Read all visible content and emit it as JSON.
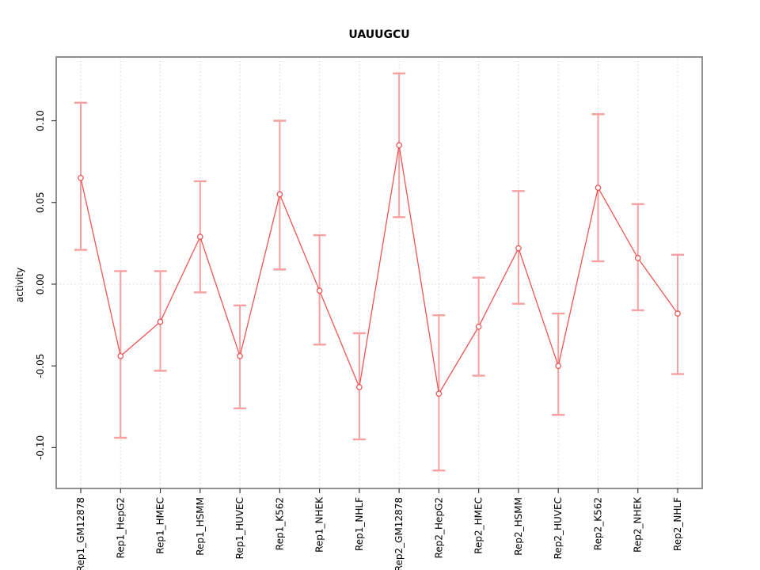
{
  "title": "UAUUGCU",
  "chart_data": {
    "type": "line",
    "title": "UAUUGCU",
    "xlabel": "",
    "ylabel": "activity",
    "legend": "none",
    "grid": "vertical dotted gridlines at each category; dotted horizontal line at 0",
    "categories": [
      "Rep1_GM12878",
      "Rep1_HepG2",
      "Rep1_HMEC",
      "Rep1_HSMM",
      "Rep1_HUVEC",
      "Rep1_K562",
      "Rep1_NHEK",
      "Rep1_NHLF",
      "Rep2_GM12878",
      "Rep2_HepG2",
      "Rep2_HMEC",
      "Rep2_HSMM",
      "Rep2_HUVEC",
      "Rep2_K562",
      "Rep2_NHEK",
      "Rep2_NHLF"
    ],
    "series": [
      {
        "name": "activity",
        "values": [
          0.065,
          -0.044,
          -0.023,
          0.029,
          -0.044,
          0.055,
          -0.004,
          -0.063,
          0.085,
          -0.067,
          -0.026,
          0.022,
          -0.05,
          0.059,
          0.016,
          -0.018
        ],
        "error_low": [
          0.021,
          -0.094,
          -0.053,
          -0.005,
          -0.076,
          0.009,
          -0.037,
          -0.095,
          0.041,
          -0.114,
          -0.056,
          -0.012,
          -0.08,
          0.014,
          -0.016,
          -0.055
        ],
        "error_high": [
          0.111,
          0.008,
          0.008,
          0.063,
          -0.013,
          0.1,
          0.03,
          -0.03,
          0.129,
          -0.019,
          0.004,
          0.057,
          -0.018,
          0.104,
          0.049,
          0.018
        ]
      }
    ],
    "ylim": [
      -0.125,
      0.139
    ],
    "yticks": [
      -0.1,
      -0.05,
      0.0,
      0.05,
      0.1
    ],
    "ytick_labels": [
      "-0.10",
      "-0.05",
      "0.00",
      "0.05",
      "0.10"
    ]
  },
  "colors": {
    "line": "#ee5555",
    "marker": "#e84c4c",
    "error_bar": "#f7a0a0",
    "grid": "#dcdcdc",
    "box": "#858585",
    "tick": "#3a3a3a",
    "text": "#000000",
    "background": "#ffffff"
  }
}
